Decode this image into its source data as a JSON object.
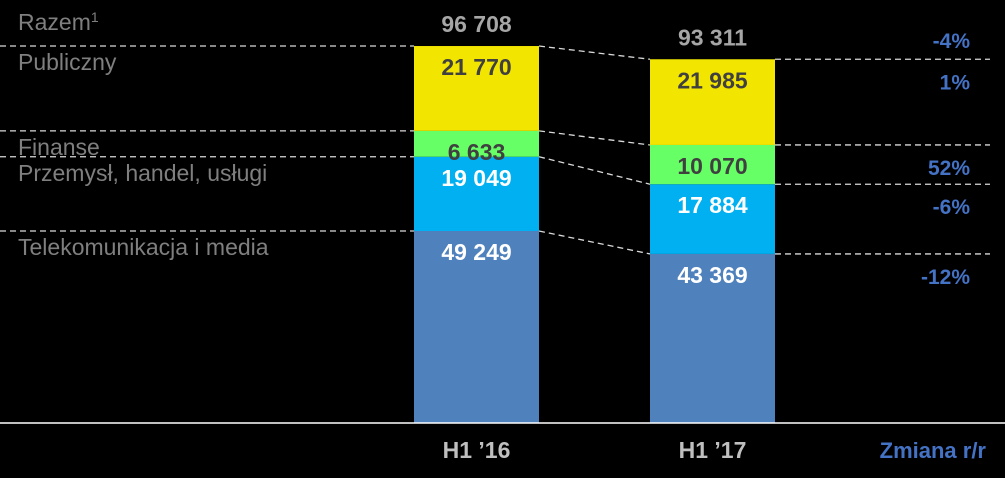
{
  "chart_data": {
    "type": "bar",
    "stacked": true,
    "categories": [
      "H1 ’16",
      "H1 ’17"
    ],
    "totals": [
      "96 708",
      "93 311"
    ],
    "total_label": "Razem",
    "total_label_sup": "1",
    "total_change": "-4%",
    "change_header": "Zmiana r/r",
    "series": [
      {
        "name": "Telekomunikacja i media",
        "values": [
          49249,
          43369
        ],
        "value_labels": [
          "49 249",
          "43 369"
        ],
        "color": "#4f81bd",
        "text_color": "#ffffff",
        "change": "-12%"
      },
      {
        "name": "Przemysł, handel, usługi",
        "values": [
          19049,
          17884
        ],
        "value_labels": [
          "19 049",
          "17 884"
        ],
        "color": "#00b0f0",
        "text_color": "#ffffff",
        "change": "-6%"
      },
      {
        "name": "Finanse",
        "values": [
          6633,
          10070
        ],
        "value_labels": [
          "6 633",
          "10 070"
        ],
        "color": "#66ff66",
        "text_color": "#404040",
        "change": "52%"
      },
      {
        "name": "Publiczny",
        "values": [
          21770,
          21985
        ],
        "value_labels": [
          "21 770",
          "21 985"
        ],
        "color": "#f2e600",
        "text_color": "#404040",
        "change": "1%"
      }
    ],
    "ylim": [
      0,
      96708
    ],
    "grid": false,
    "legend": "left",
    "colors": {
      "background": "#000000",
      "category_text": "#7f7f7f",
      "change_text": "#4472c4",
      "dash_line": "#d9d9d9",
      "axis_line": "#ffffff"
    }
  }
}
